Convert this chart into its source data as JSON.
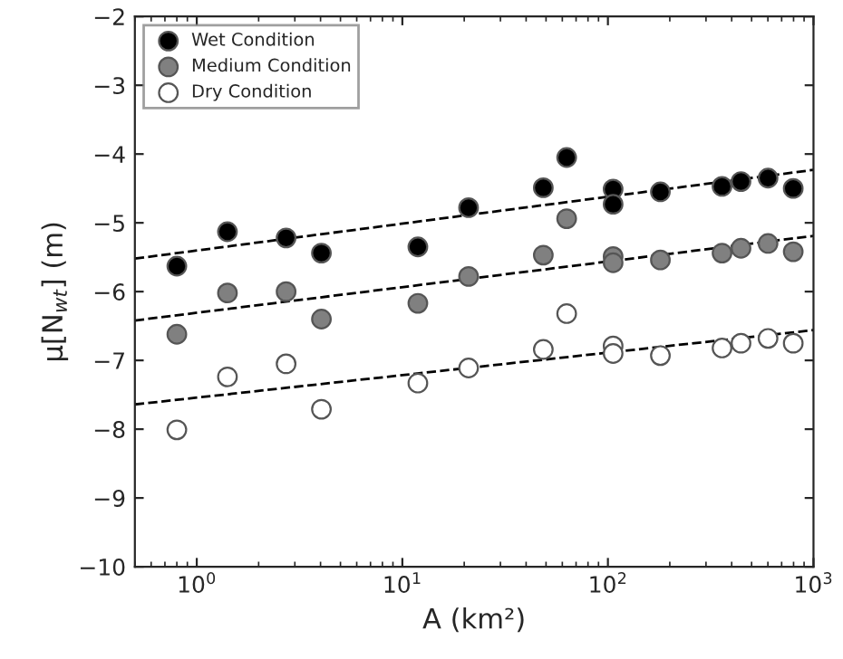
{
  "chart_data": {
    "type": "scatter",
    "xlabel": "A (km²)",
    "ylabel": "μ[N$_{wt}$] (m)",
    "log": "x",
    "legend": "top left",
    "grid": false,
    "xlim": [
      0.5,
      1000
    ],
    "ylim": [
      -10,
      -2
    ],
    "xticks": [
      {
        "value": 1,
        "label": "10$^{0}$"
      },
      {
        "value": 10,
        "label": "10$^{1}$"
      },
      {
        "value": 100,
        "label": "10$^{2}$"
      },
      {
        "value": 1000,
        "label": "10$^{3}$"
      }
    ],
    "yticks": [
      {
        "value": -10,
        "label": "−10"
      },
      {
        "value": -9,
        "label": "−9"
      },
      {
        "value": -8,
        "label": "−8"
      },
      {
        "value": -7,
        "label": "−7"
      },
      {
        "value": -6,
        "label": "−6"
      },
      {
        "value": -5,
        "label": "−5"
      },
      {
        "value": -4,
        "label": "−4"
      },
      {
        "value": -3,
        "label": "−3"
      },
      {
        "value": -2,
        "label": "−2"
      }
    ],
    "series": [
      {
        "name": "Wet Condition",
        "marker": "circle",
        "color": "#000000",
        "x": [
          0.8,
          1.41,
          2.72,
          4.04,
          11.9,
          21.0,
          48.5,
          63,
          106,
          106,
          180,
          359,
          444,
          601,
          797
        ],
        "values": [
          -5.63,
          -5.13,
          -5.22,
          -5.44,
          -5.35,
          -4.78,
          -4.49,
          -4.05,
          -4.51,
          -4.73,
          -4.55,
          -4.47,
          -4.4,
          -4.35,
          -4.5
        ]
      },
      {
        "name": "Medium Condition",
        "marker": "circle",
        "color": "#808080",
        "x": [
          0.8,
          1.41,
          2.72,
          4.04,
          11.9,
          21.0,
          48.5,
          63,
          106,
          106,
          180,
          359,
          444,
          601,
          797
        ],
        "values": [
          -6.62,
          -6.02,
          -6.0,
          -6.4,
          -6.17,
          -5.78,
          -5.47,
          -4.94,
          -5.49,
          -5.58,
          -5.54,
          -5.44,
          -5.37,
          -5.3,
          -5.42
        ]
      },
      {
        "name": "Dry Condition",
        "marker": "circle",
        "color": "#ffffff",
        "x": [
          0.8,
          1.41,
          2.72,
          4.04,
          11.9,
          21.0,
          48.5,
          63,
          106,
          106,
          180,
          359,
          444,
          601,
          797
        ],
        "values": [
          -8.01,
          -7.24,
          -7.05,
          -7.71,
          -7.33,
          -7.11,
          -6.84,
          -6.32,
          -6.79,
          -6.9,
          -6.93,
          -6.82,
          -6.75,
          -6.68,
          -6.75
        ]
      },
      {
        "type": "line",
        "line_style": "dashed",
        "color": "#000000",
        "x": [
          0.5,
          1000
        ],
        "values": [
          -5.52,
          -4.23
        ]
      },
      {
        "type": "line",
        "line_style": "dashed",
        "color": "#000000",
        "x": [
          0.5,
          1000
        ],
        "values": [
          -6.42,
          -5.19
        ]
      },
      {
        "type": "line",
        "line_style": "dashed",
        "color": "#000000",
        "x": [
          0.5,
          1000
        ],
        "values": [
          -7.64,
          -6.56
        ]
      }
    ]
  }
}
